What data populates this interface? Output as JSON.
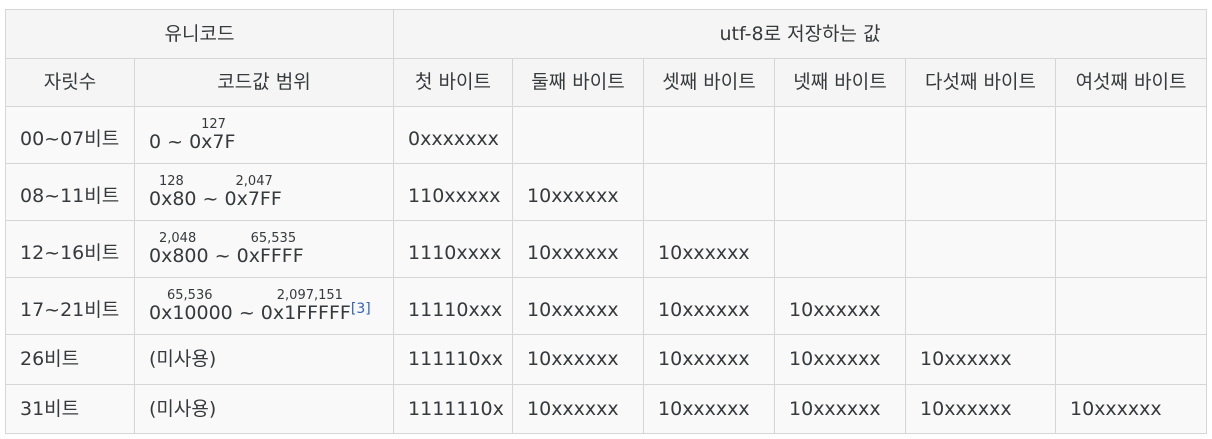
{
  "header": {
    "unicode": "유니코드",
    "utf8": "utf-8로 저장하는 값",
    "bits": "자릿수",
    "range": "코드값 범위",
    "bytes": [
      "첫 바이트",
      "둘째 바이트",
      "셋째 바이트",
      "넷째 바이트",
      "다섯째 바이트",
      "여섯째 바이트"
    ]
  },
  "rows": [
    {
      "bits": "00~07비트",
      "range_start": "0",
      "start_sup": "",
      "sep": " ~ ",
      "range_end": "0x7F",
      "end_sup": "127",
      "cite": "",
      "bytes": [
        "0xxxxxxx",
        "",
        "",
        "",
        "",
        ""
      ]
    },
    {
      "bits": "08~11비트",
      "range_start": "0x80",
      "start_sup": "128",
      "sep": " ~ ",
      "range_end": "0x7FF",
      "end_sup": "2,047",
      "cite": "",
      "bytes": [
        "110xxxxx",
        "10xxxxxx",
        "",
        "",
        "",
        ""
      ]
    },
    {
      "bits": "12~16비트",
      "range_start": "0x800",
      "start_sup": "2,048",
      "sep": " ~ ",
      "range_end": "0xFFFF",
      "end_sup": "65,535",
      "cite": "",
      "bytes": [
        "1110xxxx",
        "10xxxxxx",
        "10xxxxxx",
        "",
        "",
        ""
      ]
    },
    {
      "bits": "17~21비트",
      "range_start": "0x10000",
      "start_sup": "65,536",
      "sep": " ~ ",
      "range_end": "0x1FFFFF",
      "end_sup": "2,097,151",
      "cite": "[3]",
      "bytes": [
        "11110xxx",
        "10xxxxxx",
        "10xxxxxx",
        "10xxxxxx",
        "",
        ""
      ]
    },
    {
      "bits": "26비트",
      "range_text": "(미사용)",
      "bytes": [
        "111110xx",
        "10xxxxxx",
        "10xxxxxx",
        "10xxxxxx",
        "10xxxxxx",
        ""
      ]
    },
    {
      "bits": "31비트",
      "range_text": "(미사용)",
      "bytes": [
        "1111110x",
        "10xxxxxx",
        "10xxxxxx",
        "10xxxxxx",
        "10xxxxxx",
        "10xxxxxx"
      ]
    }
  ]
}
